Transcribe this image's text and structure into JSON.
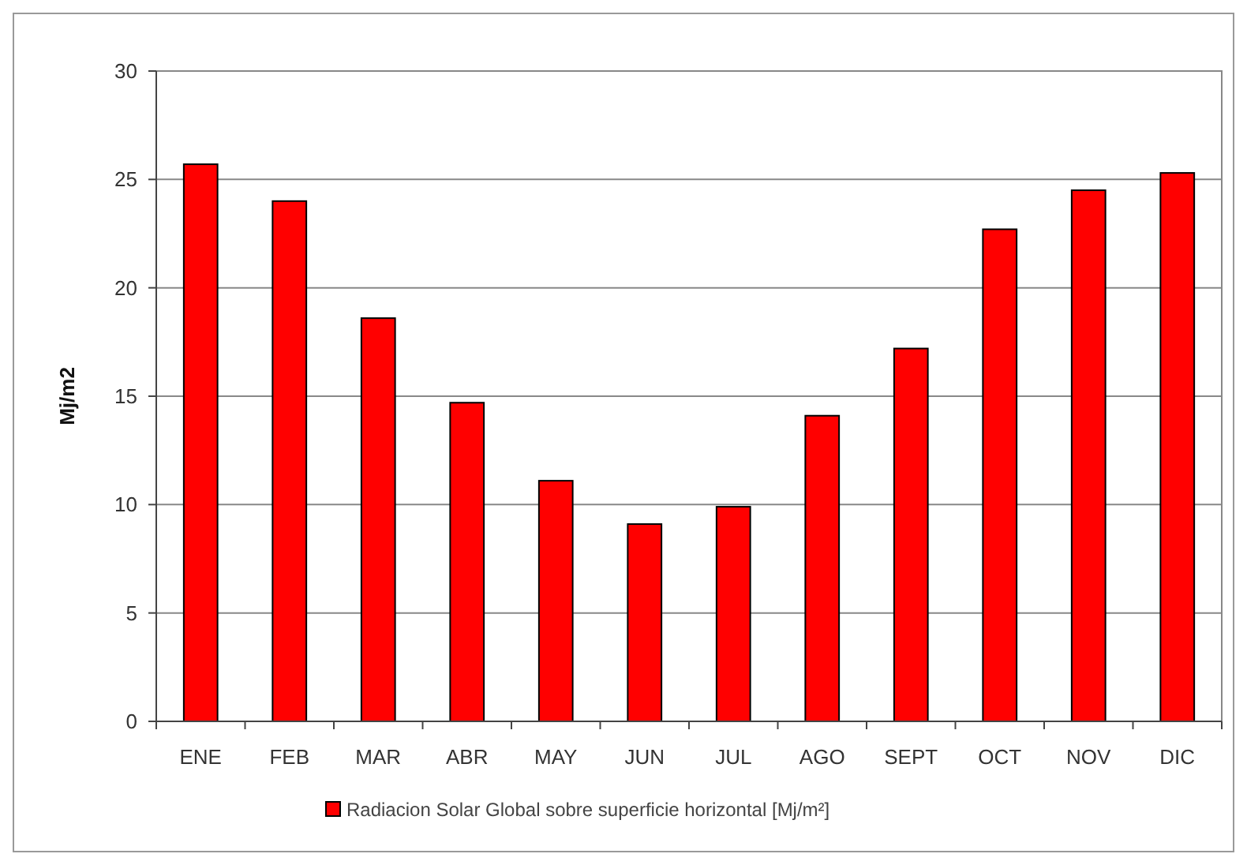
{
  "chart_data": {
    "type": "bar",
    "ylabel": "Mj/m2",
    "categories": [
      "ENE",
      "FEB",
      "MAR",
      "ABR",
      "MAY",
      "JUN",
      "JUL",
      "AGO",
      "SEPT",
      "OCT",
      "NOV",
      "DIC"
    ],
    "series": [
      {
        "name": "Radiacion Solar Global sobre superficie horizontal [Mj/m²]",
        "color": "#ff0000",
        "values": [
          25.7,
          24.0,
          18.6,
          14.7,
          11.1,
          9.1,
          9.9,
          14.1,
          17.2,
          22.7,
          24.5,
          25.3
        ]
      }
    ],
    "ylim": [
      0,
      30
    ],
    "yticks": [
      0,
      5,
      10,
      15,
      20,
      25,
      30
    ],
    "grid": "y",
    "legend": "bottom"
  }
}
